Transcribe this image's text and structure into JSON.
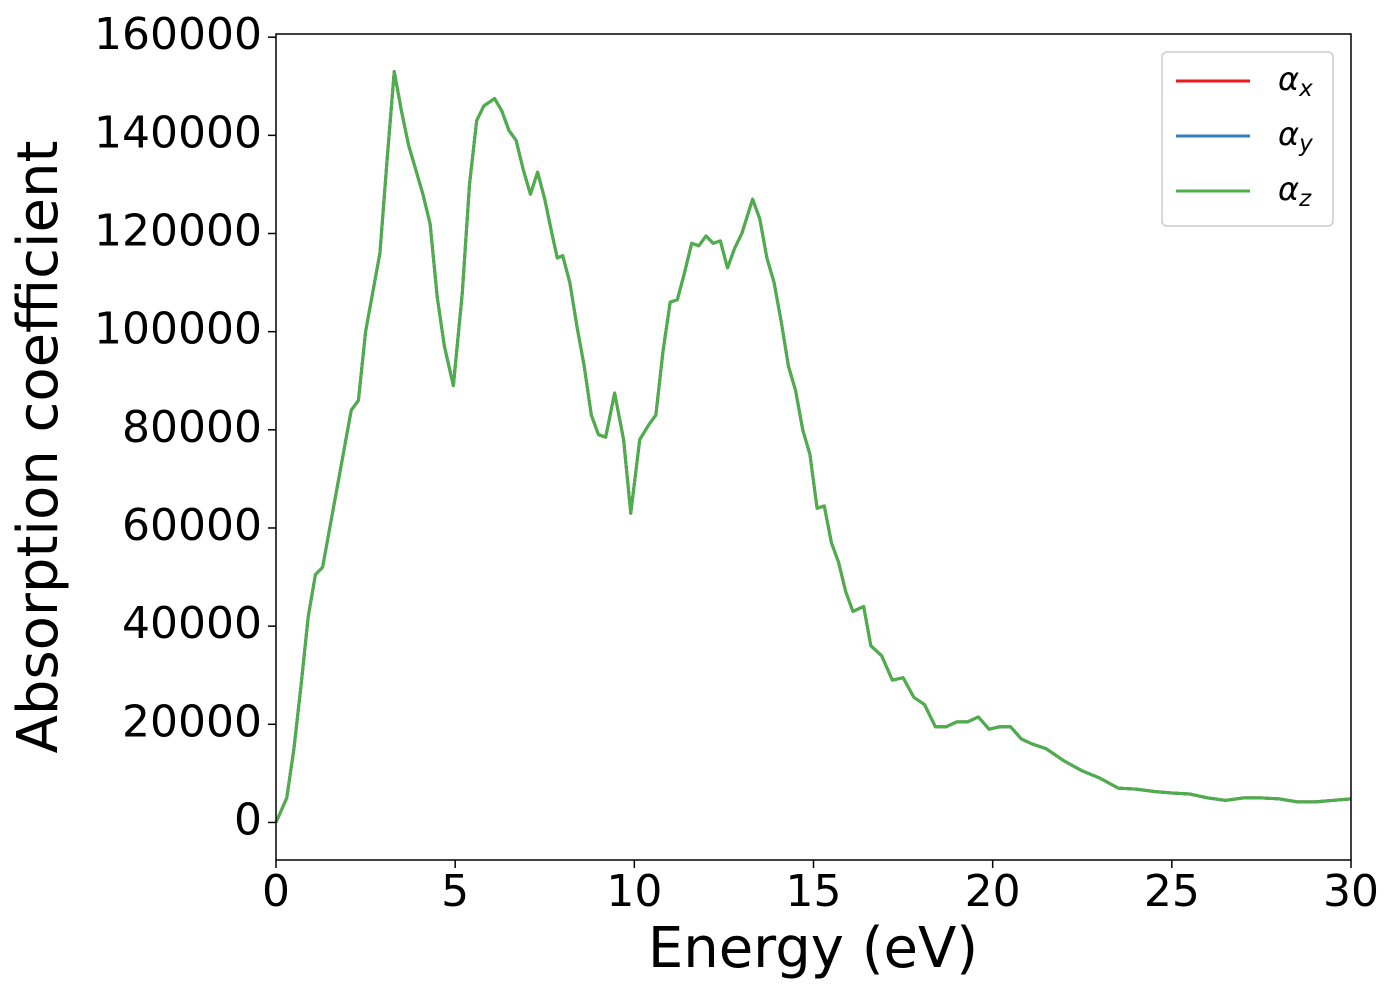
{
  "chart_data": {
    "type": "line",
    "xlabel": "Energy (eV)",
    "ylabel": "Absorption coefficient",
    "x": [
      0,
      0.3,
      0.5,
      0.7,
      0.9,
      1.1,
      1.3,
      1.5,
      1.7,
      1.9,
      2.1,
      2.3,
      2.5,
      2.7,
      2.9,
      3.1,
      3.3,
      3.5,
      3.7,
      3.9,
      4.1,
      4.3,
      4.5,
      4.7,
      4.95,
      5.2,
      5.4,
      5.6,
      5.8,
      6.0,
      6.1,
      6.3,
      6.5,
      6.7,
      6.9,
      7.1,
      7.3,
      7.5,
      7.7,
      7.85,
      8.0,
      8.2,
      8.4,
      8.6,
      8.8,
      9.0,
      9.2,
      9.45,
      9.7,
      9.9,
      10.15,
      10.4,
      10.6,
      10.8,
      11.0,
      11.2,
      11.4,
      11.6,
      11.8,
      12.0,
      12.2,
      12.4,
      12.6,
      12.8,
      13.0,
      13.3,
      13.5,
      13.7,
      13.9,
      14.1,
      14.3,
      14.5,
      14.7,
      14.9,
      15.1,
      15.3,
      15.5,
      15.7,
      15.9,
      16.1,
      16.4,
      16.6,
      16.9,
      17.2,
      17.5,
      17.8,
      18.1,
      18.4,
      18.7,
      19.0,
      19.3,
      19.6,
      19.9,
      20.2,
      20.5,
      20.8,
      21.1,
      21.5,
      22.0,
      22.5,
      23.0,
      23.5,
      24.0,
      24.5,
      25.0,
      25.5,
      26.0,
      26.5,
      27.0,
      27.5,
      28.0,
      28.5,
      29.0,
      29.5,
      30
    ],
    "series": [
      {
        "name": "αx",
        "color": "#e41a1c",
        "values": [
          0,
          5000,
          15000,
          28000,
          42000,
          50500,
          52000,
          60000,
          68000,
          76000,
          84000,
          86000,
          100000,
          108000,
          116000,
          135000,
          153000,
          145000,
          138000,
          133000,
          128000,
          122000,
          107000,
          97000,
          89000,
          108000,
          130000,
          143000,
          146000,
          147000,
          147500,
          145000,
          141000,
          139000,
          133000,
          128000,
          132500,
          127000,
          120000,
          115000,
          115500,
          110000,
          101000,
          93000,
          83000,
          79000,
          78500,
          87500,
          78000,
          63000,
          78000,
          81000,
          83000,
          96000,
          106000,
          106500,
          112000,
          118000,
          117500,
          119500,
          118000,
          118500,
          113000,
          117000,
          120000,
          127000,
          123000,
          115000,
          110000,
          102000,
          93000,
          88000,
          80000,
          75000,
          64000,
          64500,
          57000,
          53000,
          47000,
          43000,
          44000,
          36000,
          34000,
          29000,
          29500,
          25500,
          24000,
          19500,
          19500,
          20500,
          20500,
          21500,
          19000,
          19500,
          19500,
          17000,
          16000,
          15000,
          12500,
          10500,
          9000,
          7000,
          6800,
          6300,
          6000,
          5800,
          5000,
          4500,
          5000,
          5000,
          4800,
          4200,
          4200,
          4500,
          4800
        ]
      },
      {
        "name": "αy",
        "color": "#377eb8",
        "values": [
          0,
          5000,
          15000,
          28000,
          42000,
          50500,
          52000,
          60000,
          68000,
          76000,
          84000,
          86000,
          100000,
          108000,
          116000,
          135000,
          153000,
          145000,
          138000,
          133000,
          128000,
          122000,
          107000,
          97000,
          89000,
          108000,
          130000,
          143000,
          146000,
          147000,
          147500,
          145000,
          141000,
          139000,
          133000,
          128000,
          132500,
          127000,
          120000,
          115000,
          115500,
          110000,
          101000,
          93000,
          83000,
          79000,
          78500,
          87500,
          78000,
          63000,
          78000,
          81000,
          83000,
          96000,
          106000,
          106500,
          112000,
          118000,
          117500,
          119500,
          118000,
          118500,
          113000,
          117000,
          120000,
          127000,
          123000,
          115000,
          110000,
          102000,
          93000,
          88000,
          80000,
          75000,
          64000,
          64500,
          57000,
          53000,
          47000,
          43000,
          44000,
          36000,
          34000,
          29000,
          29500,
          25500,
          24000,
          19500,
          19500,
          20500,
          20500,
          21500,
          19000,
          19500,
          19500,
          17000,
          16000,
          15000,
          12500,
          10500,
          9000,
          7000,
          6800,
          6300,
          6000,
          5800,
          5000,
          4500,
          5000,
          5000,
          4800,
          4200,
          4200,
          4500,
          4800
        ]
      },
      {
        "name": "αz",
        "color": "#4daf4a",
        "values": [
          0,
          5000,
          15000,
          28000,
          42000,
          50500,
          52000,
          60000,
          68000,
          76000,
          84000,
          86000,
          100000,
          108000,
          116000,
          135000,
          153000,
          145000,
          138000,
          133000,
          128000,
          122000,
          107000,
          97000,
          89000,
          108000,
          130000,
          143000,
          146000,
          147000,
          147500,
          145000,
          141000,
          139000,
          133000,
          128000,
          132500,
          127000,
          120000,
          115000,
          115500,
          110000,
          101000,
          93000,
          83000,
          79000,
          78500,
          87500,
          78000,
          63000,
          78000,
          81000,
          83000,
          96000,
          106000,
          106500,
          112000,
          118000,
          117500,
          119500,
          118000,
          118500,
          113000,
          117000,
          120000,
          127000,
          123000,
          115000,
          110000,
          102000,
          93000,
          88000,
          80000,
          75000,
          64000,
          64500,
          57000,
          53000,
          47000,
          43000,
          44000,
          36000,
          34000,
          29000,
          29500,
          25500,
          24000,
          19500,
          19500,
          20500,
          20500,
          21500,
          19000,
          19500,
          19500,
          17000,
          16000,
          15000,
          12500,
          10500,
          9000,
          7000,
          6800,
          6300,
          6000,
          5800,
          5000,
          4500,
          5000,
          5000,
          4800,
          4200,
          4200,
          4500,
          4800
        ]
      }
    ],
    "xlim": [
      0,
      30
    ],
    "xticks": [
      0,
      5,
      10,
      15,
      20,
      25,
      30
    ],
    "ylim": [
      -7650,
      160650
    ],
    "yticks": [
      0,
      20000,
      40000,
      60000,
      80000,
      100000,
      120000,
      140000,
      160000
    ],
    "legend": "upper right"
  }
}
